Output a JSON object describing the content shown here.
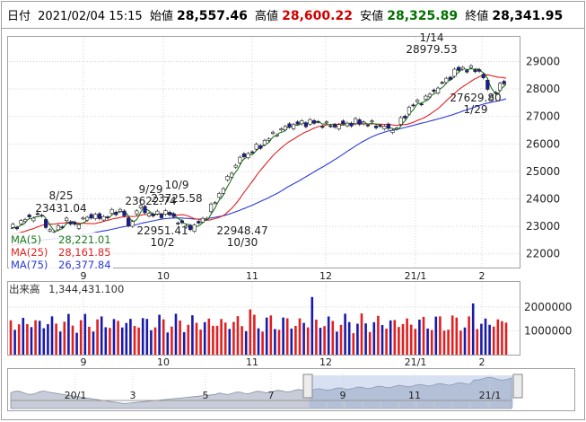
{
  "header": {
    "date_label": "日付",
    "datetime": "2021/02/04 15:15",
    "open_label": "始値",
    "open": "28,557.46",
    "high_label": "高値",
    "high": "28,600.22",
    "low_label": "安値",
    "low": "28,325.89",
    "close_label": "終値",
    "close": "28,341.95"
  },
  "legend": {
    "ma5_label": "MA(5)",
    "ma5_value": "28,221.01",
    "ma25_label": "MA(25)",
    "ma25_value": "28,161.85",
    "ma75_label": "MA(75)",
    "ma75_value": "26,377.84"
  },
  "volume_header": {
    "label": "出来高",
    "value": "1,344,431.100"
  },
  "annotations": [
    {
      "text": "8/25",
      "kind": "date"
    },
    {
      "text": "23431.04",
      "kind": "value"
    },
    {
      "text": "9/29",
      "kind": "date"
    },
    {
      "text": "23622.74",
      "kind": "value"
    },
    {
      "text": "10/9",
      "kind": "date"
    },
    {
      "text": "23725.58",
      "kind": "value"
    },
    {
      "text": "22951.41",
      "kind": "value"
    },
    {
      "text": "10/2",
      "kind": "date"
    },
    {
      "text": "22948.47",
      "kind": "value"
    },
    {
      "text": "10/30",
      "kind": "date"
    },
    {
      "text": "1/14",
      "kind": "date"
    },
    {
      "text": "28979.53",
      "kind": "value"
    },
    {
      "text": "27629.80",
      "kind": "value"
    },
    {
      "text": "1/29",
      "kind": "date"
    }
  ],
  "colors": {
    "up": "#ffffff",
    "down": "#1a1aa8",
    "ma5": "#1a7a1a",
    "ma25": "#e02020",
    "ma75": "#2a3ad8",
    "vol_up": "#e02020",
    "vol_down": "#1a1aa8",
    "grid": "#d4d4d4",
    "open_val": "#000000",
    "high_val": "#d00000",
    "low_val": "#007000",
    "close_val": "#000000"
  },
  "chart_data": [
    {
      "type": "candlestick",
      "title": "",
      "price_axis": {
        "ticks": [
          22000,
          23000,
          24000,
          25000,
          26000,
          27000,
          28000,
          29000
        ],
        "range": [
          21500,
          29900
        ]
      },
      "x_ticks": [
        "9",
        "10",
        "11",
        "12",
        "21/1",
        "2"
      ],
      "series": [
        {
          "name": "MA(5)"
        },
        {
          "name": "MA(25)"
        },
        {
          "name": "MA(75)"
        }
      ],
      "anchor_points": [
        {
          "date": "8/25",
          "value": 23431.04
        },
        {
          "date": "9/29",
          "value": 23622.74
        },
        {
          "date": "10/2",
          "value": 22951.41
        },
        {
          "date": "10/9",
          "value": 23725.58
        },
        {
          "date": "10/30",
          "value": 22948.47
        },
        {
          "date": "1/14",
          "value": 28979.53
        },
        {
          "date": "1/29",
          "value": 27629.8
        },
        {
          "date": "2/4",
          "open": 28557.46,
          "high": 28600.22,
          "low": 28325.89,
          "close": 28341.95
        }
      ]
    },
    {
      "type": "bar",
      "title": "",
      "volume_axis": {
        "ticks": [
          1000000,
          2000000
        ],
        "range": [
          0,
          2600000
        ]
      },
      "x_ticks": [
        "9",
        "10",
        "11",
        "12",
        "21/1",
        "2"
      ],
      "last_value": 1344431.1
    },
    {
      "type": "area",
      "title": "",
      "x_ticks": [
        "20/1",
        "3",
        "5",
        "7",
        "9",
        "11",
        "21/1"
      ]
    }
  ]
}
